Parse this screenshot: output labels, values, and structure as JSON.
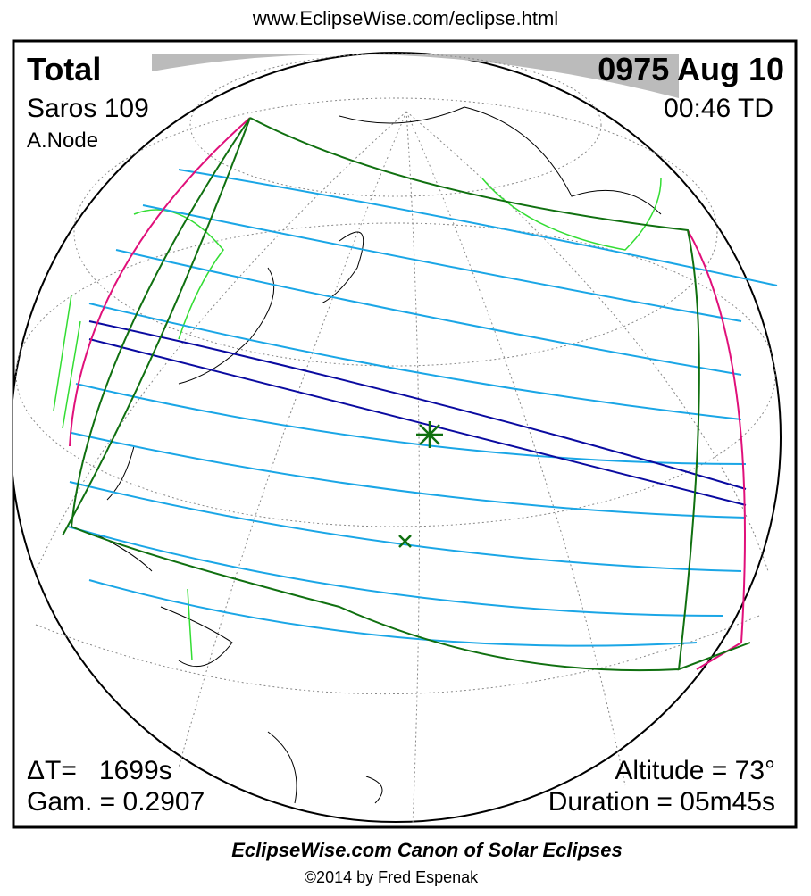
{
  "header": {
    "url": "www.EclipseWise.com/eclipse.html"
  },
  "panel": {
    "eclipse_type": "Total",
    "saros": "Saros 109",
    "node": "A.Node",
    "date": "0975 Aug 10",
    "time": "00:46 TD",
    "delta_t": "ΔT=   1699s",
    "gamma": "Gam. = 0.2907",
    "altitude": "Altitude = 73°",
    "duration": "Duration = 05m45s"
  },
  "footer": {
    "title": "EclipseWise.com Canon of Solar Eclipses",
    "copyright": "©2014 by Fred Espenak"
  }
}
